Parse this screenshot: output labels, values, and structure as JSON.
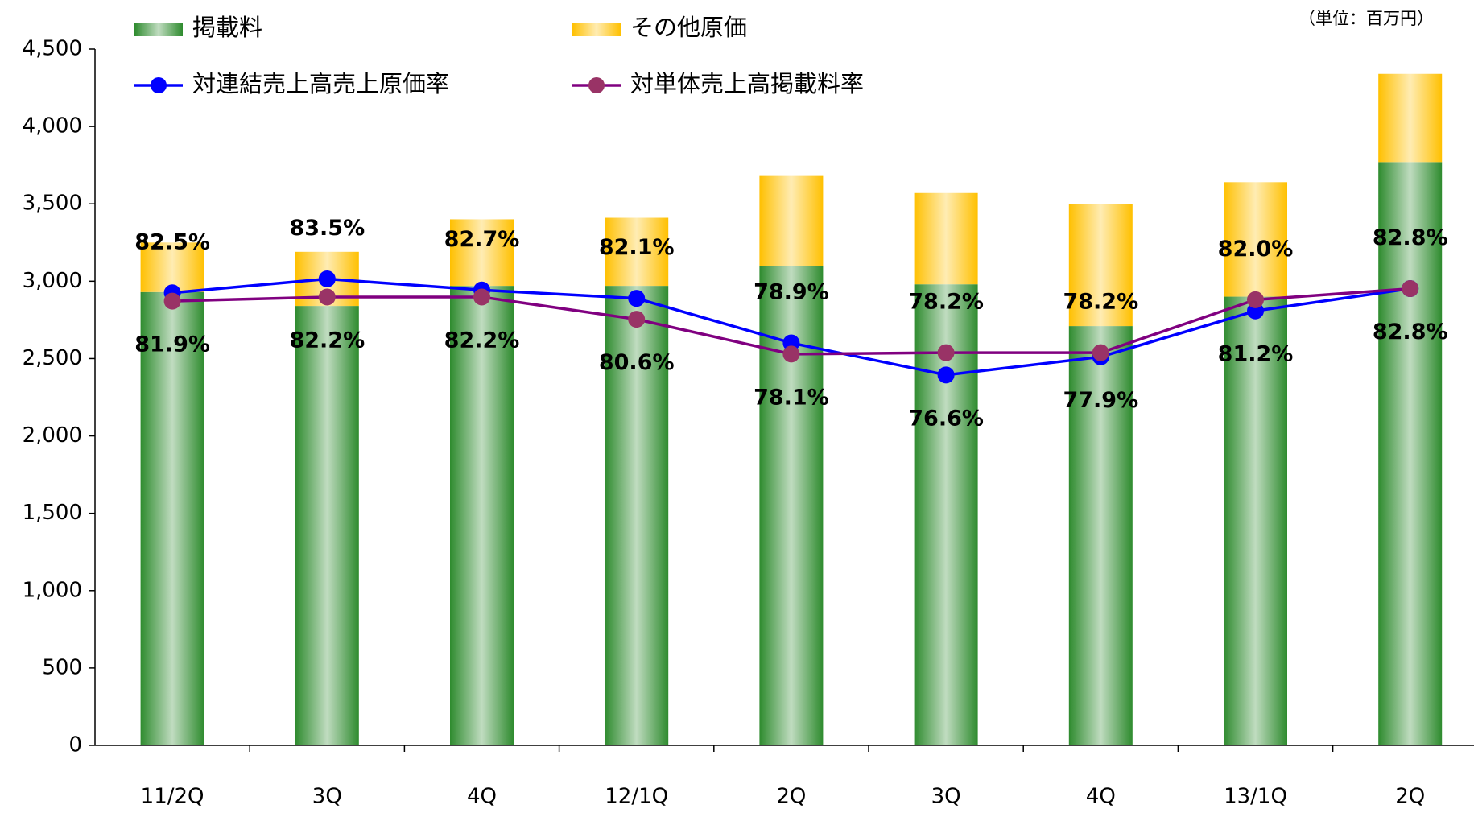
{
  "chart_data": {
    "type": "bar",
    "stacked": true,
    "unit_note": "（単位：百万円）",
    "categories": [
      "11/2Q",
      "3Q",
      "4Q",
      "12/1Q",
      "2Q",
      "3Q",
      "4Q",
      "13/1Q",
      "2Q"
    ],
    "series": [
      {
        "name": "掲載料",
        "type": "bar",
        "color": "#2e8b2e",
        "values": [
          2930,
          2840,
          2970,
          2970,
          3100,
          2980,
          2710,
          2900,
          3770
        ]
      },
      {
        "name": "その他原価",
        "type": "bar",
        "color": "#ffc000",
        "values": [
          320,
          350,
          430,
          440,
          580,
          590,
          790,
          740,
          570
        ]
      },
      {
        "name": "対連結売上高売上原価率",
        "type": "line",
        "axis": "y2",
        "color": "#0000ff",
        "marker_color": "#0000ff",
        "values": [
          82.5,
          83.5,
          82.7,
          82.1,
          78.9,
          76.6,
          77.9,
          81.2,
          82.8
        ],
        "value_labels": [
          "82.5%",
          "83.5%",
          "82.7%",
          "82.1%",
          "78.9%",
          "76.6%",
          "77.9%",
          "81.2%",
          "82.8%"
        ]
      },
      {
        "name": "対単体売上高掲載料率",
        "type": "line",
        "axis": "y2",
        "color": "#800080",
        "marker_color": "#993366",
        "values": [
          81.9,
          82.2,
          82.2,
          80.6,
          78.1,
          78.2,
          78.2,
          82.0,
          82.8
        ],
        "value_labels": [
          "81.9%",
          "82.2%",
          "82.2%",
          "80.6%",
          "78.1%",
          "78.2%",
          "78.2%",
          "82.0%",
          "82.8%"
        ]
      }
    ],
    "ylim": [
      0,
      4500
    ],
    "yticks": [
      0,
      500,
      {
        "value": 1000,
        "label": "1,000"
      },
      {
        "value": 1500,
        "label": "1,500"
      },
      {
        "value": 2000,
        "label": "2,000"
      },
      {
        "value": 2500,
        "label": "2,500"
      },
      {
        "value": 3000,
        "label": "3,000"
      },
      {
        "value": 3500,
        "label": "3,500"
      },
      {
        "value": 4000,
        "label": "4,000"
      },
      {
        "value": 4500,
        "label": "4,500"
      }
    ],
    "y2lim": [
      50,
      100
    ],
    "grid": false
  }
}
